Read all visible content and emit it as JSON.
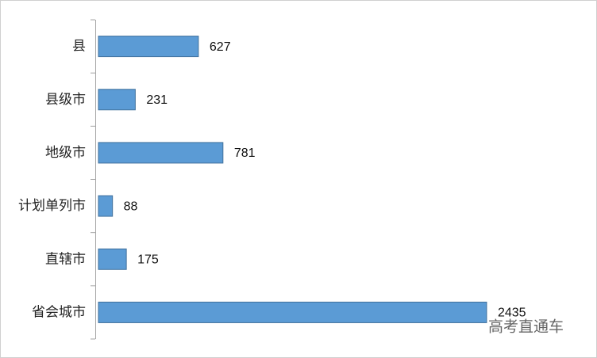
{
  "chart_data": {
    "type": "barh",
    "categories": [
      "县",
      "县级市",
      "地级市",
      "计划单列市",
      "直辖市",
      "省会城市"
    ],
    "values": [
      627,
      231,
      781,
      88,
      175,
      2435
    ],
    "color": "#5b9bd5",
    "xlim": [
      0,
      2500
    ],
    "watermark": "高考直通车"
  }
}
